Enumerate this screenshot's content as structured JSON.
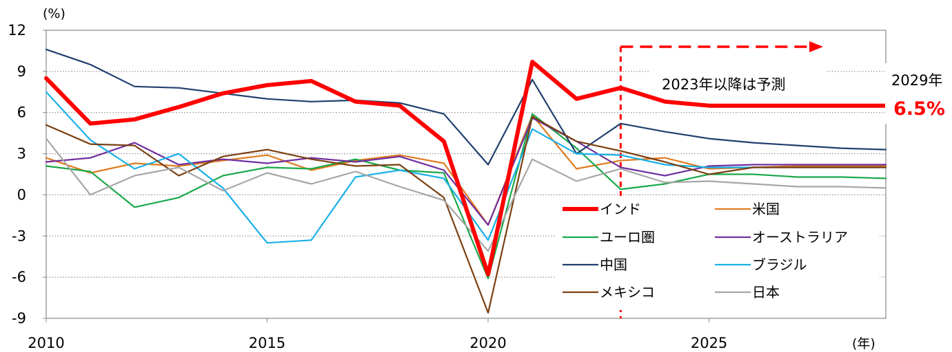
{
  "chart_data": {
    "type": "line",
    "y_unit_label": "(%)",
    "x_unit_label": "(年)",
    "ylim": [
      -9,
      12
    ],
    "yticks": [
      12,
      9,
      6,
      3,
      0,
      -3,
      -6,
      -9
    ],
    "xlim": [
      2010,
      2029
    ],
    "xticks": [
      2010,
      2015,
      2020,
      2025
    ],
    "grid": "horizontal dotted",
    "forecast_start": 2023,
    "forecast_label": "2023年以降は予測",
    "end_label_year": "2029年",
    "end_label_value": "6.5%",
    "legend_position": "bottom-right inside",
    "x": [
      2010,
      2011,
      2012,
      2013,
      2014,
      2015,
      2016,
      2017,
      2018,
      2019,
      2020,
      2021,
      2022,
      2023,
      2024,
      2025,
      2026,
      2027,
      2028,
      2029
    ],
    "series": [
      {
        "name": "インド",
        "color": "#ff0000",
        "highlight": true,
        "values": [
          8.5,
          5.2,
          5.5,
          6.4,
          7.4,
          8.0,
          8.3,
          6.8,
          6.5,
          3.9,
          -5.8,
          9.7,
          7.0,
          7.8,
          6.8,
          6.5,
          6.5,
          6.5,
          6.5,
          6.5
        ]
      },
      {
        "name": "米国",
        "color": "#e07b20",
        "values": [
          2.7,
          1.6,
          2.3,
          2.1,
          2.5,
          2.9,
          1.8,
          2.5,
          2.9,
          2.3,
          -2.2,
          5.8,
          1.9,
          2.5,
          2.7,
          1.9,
          2.0,
          2.1,
          2.1,
          2.1
        ]
      },
      {
        "name": "ユーロ圏",
        "color": "#1aa84a",
        "values": [
          2.1,
          1.7,
          -0.9,
          -0.2,
          1.4,
          2.0,
          1.9,
          2.6,
          1.8,
          1.6,
          -6.1,
          5.9,
          3.4,
          0.4,
          0.8,
          1.5,
          1.5,
          1.3,
          1.3,
          1.2
        ]
      },
      {
        "name": "オーストラリア",
        "color": "#7030a0",
        "values": [
          2.4,
          2.7,
          3.8,
          2.2,
          2.6,
          2.3,
          2.7,
          2.4,
          2.8,
          1.8,
          -2.2,
          5.6,
          3.9,
          2.0,
          1.4,
          2.1,
          2.2,
          2.2,
          2.2,
          2.2
        ]
      },
      {
        "name": "中国",
        "color": "#1f3f6e",
        "values": [
          10.6,
          9.5,
          7.9,
          7.8,
          7.4,
          7.0,
          6.8,
          6.9,
          6.7,
          5.9,
          2.2,
          8.4,
          3.0,
          5.2,
          4.6,
          4.1,
          3.8,
          3.6,
          3.4,
          3.3
        ]
      },
      {
        "name": "ブラジル",
        "color": "#19b0e8",
        "values": [
          7.5,
          4.0,
          1.9,
          3.0,
          0.5,
          -3.5,
          -3.3,
          1.3,
          1.8,
          1.2,
          -3.3,
          4.8,
          3.0,
          2.9,
          2.2,
          2.0,
          2.0,
          2.0,
          2.0,
          2.0
        ]
      },
      {
        "name": "メキシコ",
        "color": "#7b3f10",
        "values": [
          5.1,
          3.7,
          3.6,
          1.4,
          2.8,
          3.3,
          2.6,
          2.1,
          2.2,
          -0.2,
          -8.6,
          5.7,
          3.9,
          3.2,
          2.4,
          1.5,
          2.0,
          2.0,
          2.0,
          2.0
        ]
      },
      {
        "name": "日本",
        "color": "#a6a6a6",
        "values": [
          4.1,
          0.0,
          1.4,
          2.0,
          0.3,
          1.6,
          0.8,
          1.7,
          0.6,
          -0.4,
          -4.1,
          2.6,
          1.0,
          1.9,
          0.9,
          1.0,
          0.8,
          0.6,
          0.6,
          0.5
        ]
      }
    ]
  }
}
